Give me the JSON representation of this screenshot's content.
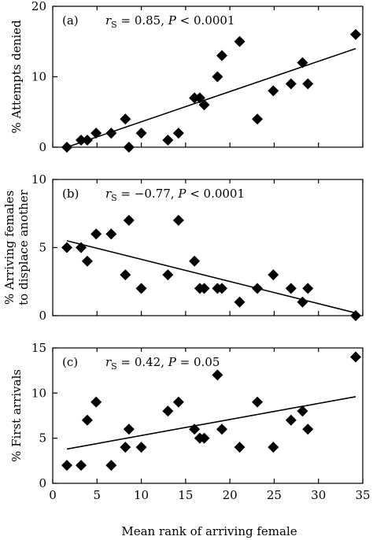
{
  "figure": {
    "xlabel": "Mean rank of arriving female",
    "x_ticks": [
      "0",
      "5",
      "10",
      "15",
      "20",
      "25",
      "30",
      "35"
    ]
  },
  "chart_data": [
    {
      "type": "scatter",
      "panel_label": "(a)",
      "stat": {
        "r_sym": "r",
        "r_sub": "S",
        "r_val": " = 0.85, ",
        "p_sym": "P",
        "p_val": " < 0.0001"
      },
      "ylabel": "% Attempts denied",
      "ylim": [
        0,
        20
      ],
      "xlim": [
        0,
        35
      ],
      "y_ticks": [
        "0",
        "10",
        "20"
      ],
      "grid": false,
      "points": [
        {
          "x": 1.6,
          "y": 0
        },
        {
          "x": 3.2,
          "y": 1
        },
        {
          "x": 3.9,
          "y": 1
        },
        {
          "x": 4.9,
          "y": 2
        },
        {
          "x": 6.6,
          "y": 2
        },
        {
          "x": 8.2,
          "y": 4
        },
        {
          "x": 8.6,
          "y": 0
        },
        {
          "x": 10.0,
          "y": 2
        },
        {
          "x": 13.0,
          "y": 1
        },
        {
          "x": 14.2,
          "y": 2
        },
        {
          "x": 16.0,
          "y": 7
        },
        {
          "x": 16.6,
          "y": 7
        },
        {
          "x": 17.1,
          "y": 6
        },
        {
          "x": 18.6,
          "y": 10
        },
        {
          "x": 19.1,
          "y": 13
        },
        {
          "x": 21.1,
          "y": 15
        },
        {
          "x": 23.1,
          "y": 4
        },
        {
          "x": 24.9,
          "y": 8
        },
        {
          "x": 26.9,
          "y": 9
        },
        {
          "x": 28.2,
          "y": 12
        },
        {
          "x": 28.8,
          "y": 9
        },
        {
          "x": 34.2,
          "y": 16
        }
      ],
      "fit_line": {
        "x": [
          1.6,
          34.2
        ],
        "y": [
          0,
          14
        ]
      }
    },
    {
      "type": "scatter",
      "panel_label": "(b)",
      "stat": {
        "r_sym": "r",
        "r_sub": "S",
        "r_val": " = −0.77, ",
        "p_sym": "P",
        "p_val": " < 0.0001"
      },
      "ylabel": "% Arriving females to displace another",
      "ylabel_lines": [
        "% Arriving females",
        "to displace another"
      ],
      "ylim": [
        0,
        10
      ],
      "xlim": [
        0,
        35
      ],
      "y_ticks": [
        "0",
        "5",
        "10"
      ],
      "grid": false,
      "points": [
        {
          "x": 1.6,
          "y": 5
        },
        {
          "x": 3.2,
          "y": 5
        },
        {
          "x": 3.9,
          "y": 4
        },
        {
          "x": 4.9,
          "y": 6
        },
        {
          "x": 6.6,
          "y": 6
        },
        {
          "x": 8.2,
          "y": 3
        },
        {
          "x": 8.6,
          "y": 7
        },
        {
          "x": 10.0,
          "y": 2
        },
        {
          "x": 13.0,
          "y": 3
        },
        {
          "x": 14.2,
          "y": 7
        },
        {
          "x": 16.0,
          "y": 4
        },
        {
          "x": 16.6,
          "y": 2
        },
        {
          "x": 17.1,
          "y": 2
        },
        {
          "x": 18.6,
          "y": 2
        },
        {
          "x": 19.1,
          "y": 2
        },
        {
          "x": 21.1,
          "y": 1
        },
        {
          "x": 23.1,
          "y": 2
        },
        {
          "x": 24.9,
          "y": 3
        },
        {
          "x": 26.9,
          "y": 2
        },
        {
          "x": 28.2,
          "y": 1
        },
        {
          "x": 28.8,
          "y": 2
        },
        {
          "x": 34.2,
          "y": 0
        }
      ],
      "fit_line": {
        "x": [
          1.6,
          34.2
        ],
        "y": [
          5.5,
          0.2
        ]
      }
    },
    {
      "type": "scatter",
      "panel_label": "(c)",
      "stat": {
        "r_sym": "r",
        "r_sub": "S",
        "r_val": " = 0.42, ",
        "p_sym": "P",
        "p_val": " = 0.05"
      },
      "ylabel": "% First arrivals",
      "ylim": [
        0,
        15
      ],
      "xlim": [
        0,
        35
      ],
      "y_ticks": [
        "0",
        "5",
        "10",
        "15"
      ],
      "grid": false,
      "points": [
        {
          "x": 1.6,
          "y": 2
        },
        {
          "x": 3.2,
          "y": 2
        },
        {
          "x": 3.9,
          "y": 7
        },
        {
          "x": 4.9,
          "y": 9
        },
        {
          "x": 6.6,
          "y": 2
        },
        {
          "x": 8.2,
          "y": 4
        },
        {
          "x": 8.6,
          "y": 6
        },
        {
          "x": 10.0,
          "y": 4
        },
        {
          "x": 13.0,
          "y": 8
        },
        {
          "x": 14.2,
          "y": 9
        },
        {
          "x": 16.0,
          "y": 6
        },
        {
          "x": 16.6,
          "y": 5
        },
        {
          "x": 17.1,
          "y": 5
        },
        {
          "x": 18.6,
          "y": 12
        },
        {
          "x": 19.1,
          "y": 6
        },
        {
          "x": 21.1,
          "y": 4
        },
        {
          "x": 23.1,
          "y": 9
        },
        {
          "x": 24.9,
          "y": 4
        },
        {
          "x": 26.9,
          "y": 7
        },
        {
          "x": 28.2,
          "y": 8
        },
        {
          "x": 28.8,
          "y": 6
        },
        {
          "x": 34.2,
          "y": 14
        }
      ],
      "fit_line": {
        "x": [
          1.6,
          34.2
        ],
        "y": [
          3.8,
          9.6
        ]
      }
    }
  ]
}
